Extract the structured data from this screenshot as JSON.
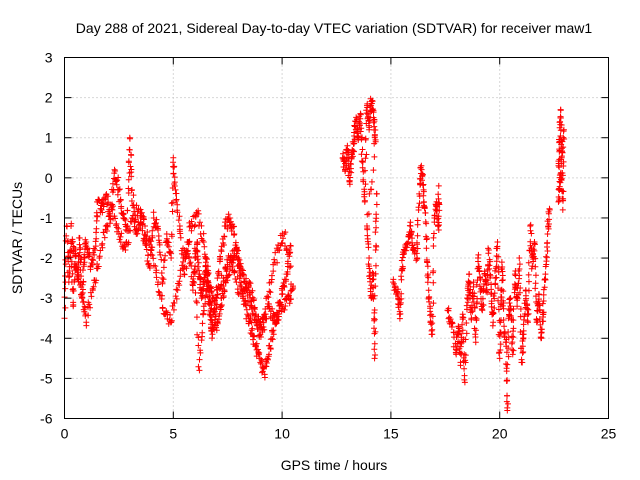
{
  "chart_data": {
    "type": "scatter",
    "title": "Day 288 of 2021, Sidereal Day-to-day VTEC variation (SDTVAR) for receiver maw1",
    "xlabel": "GPS time / hours",
    "ylabel": "SDTVAR / TECUs",
    "xlim": [
      0,
      25
    ],
    "ylim": [
      -6,
      3
    ],
    "xticks": [
      0,
      5,
      10,
      15,
      20,
      25
    ],
    "yticks": [
      -6,
      -5,
      -4,
      -3,
      -2,
      -1,
      0,
      1,
      2,
      3
    ],
    "grid": true,
    "marker": "+",
    "color": "#ff0000",
    "series": [
      {
        "name": "SDTVAR",
        "trace_segments": [
          [
            [
              0.0,
              -3.5
            ],
            [
              0.1,
              -1.2
            ],
            [
              0.2,
              -2.6
            ],
            [
              0.3,
              -1.6
            ],
            [
              0.4,
              -3.2
            ],
            [
              0.5,
              -1.8
            ],
            [
              0.6,
              -2.5
            ],
            [
              0.7,
              -1.5
            ],
            [
              0.8,
              -2.9
            ],
            [
              0.9,
              -2.0
            ],
            [
              1.0,
              -1.6
            ],
            [
              1.2,
              -2.2
            ],
            [
              1.4,
              -1.8
            ],
            [
              1.5,
              -0.6
            ],
            [
              1.7,
              -0.8
            ],
            [
              1.9,
              -0.5
            ],
            [
              2.1,
              -0.9
            ],
            [
              2.3,
              0.2
            ],
            [
              2.5,
              -0.3
            ],
            [
              2.7,
              -1.0
            ],
            [
              2.9,
              -1.2
            ],
            [
              3.0,
              1.0
            ],
            [
              3.1,
              -0.3
            ],
            [
              3.3,
              -1.4
            ],
            [
              3.5,
              -1.0
            ],
            [
              3.7,
              -1.6
            ],
            [
              3.9,
              -2.2
            ],
            [
              4.1,
              -1.0
            ],
            [
              4.3,
              -1.3
            ],
            [
              4.5,
              -2.6
            ],
            [
              4.7,
              -1.4
            ],
            [
              4.9,
              -2.0
            ],
            [
              5.0,
              0.5
            ],
            [
              5.1,
              -0.3
            ],
            [
              5.3,
              -1.2
            ],
            [
              5.5,
              -2.4
            ],
            [
              5.7,
              -1.6
            ],
            [
              5.9,
              -2.8
            ],
            [
              6.0,
              -2.2
            ],
            [
              6.2,
              -4.8
            ],
            [
              6.4,
              -3.2
            ],
            [
              6.6,
              -2.6
            ],
            [
              6.8,
              -3.6
            ],
            [
              7.0,
              -2.8
            ],
            [
              7.2,
              -1.8
            ],
            [
              7.4,
              -1.2
            ],
            [
              7.6,
              -1.0
            ],
            [
              7.8,
              -1.4
            ],
            [
              8.0,
              -2.2
            ],
            [
              8.2,
              -2.8
            ],
            [
              8.4,
              -3.4
            ],
            [
              8.6,
              -3.8
            ],
            [
              8.8,
              -4.2
            ],
            [
              9.0,
              -4.6
            ],
            [
              9.2,
              -4.9
            ],
            [
              9.4,
              -4.4
            ],
            [
              9.6,
              -3.8
            ],
            [
              9.8,
              -3.4
            ],
            [
              10.0,
              -2.8
            ],
            [
              10.2,
              -2.4
            ],
            [
              10.4,
              -1.7
            ]
          ],
          [
            [
              0.3,
              -1.2
            ],
            [
              0.5,
              -2.2
            ],
            [
              0.8,
              -3.0
            ],
            [
              1.0,
              -3.6
            ],
            [
              1.3,
              -2.8
            ],
            [
              1.6,
              -2.0
            ],
            [
              1.9,
              -1.2
            ],
            [
              2.2,
              -0.8
            ],
            [
              2.5,
              -1.4
            ],
            [
              2.8,
              -1.8
            ],
            [
              3.1,
              -1.0
            ],
            [
              3.4,
              -0.8
            ],
            [
              3.7,
              -1.2
            ],
            [
              4.0,
              -1.8
            ],
            [
              4.3,
              -2.6
            ],
            [
              4.6,
              -3.4
            ],
            [
              4.9,
              -3.6
            ],
            [
              5.2,
              -2.8
            ],
            [
              5.5,
              -2.0
            ],
            [
              5.8,
              -1.2
            ],
            [
              6.1,
              -0.9
            ],
            [
              6.4,
              -1.6
            ],
            [
              6.6,
              -2.4
            ],
            [
              6.8,
              -3.0
            ],
            [
              7.0,
              -3.8
            ],
            [
              7.2,
              -3.2
            ],
            [
              7.4,
              -2.6
            ],
            [
              7.6,
              -2.2
            ],
            [
              7.8,
              -1.8
            ],
            [
              8.0,
              -2.0
            ],
            [
              8.2,
              -2.4
            ],
            [
              8.4,
              -2.8
            ],
            [
              8.6,
              -3.2
            ],
            [
              8.8,
              -3.6
            ],
            [
              9.0,
              -3.9
            ],
            [
              9.2,
              -3.4
            ],
            [
              9.5,
              -2.6
            ],
            [
              9.8,
              -1.8
            ],
            [
              10.1,
              -1.4
            ],
            [
              10.4,
              -2.2
            ]
          ],
          [
            [
              6.0,
              -2.0
            ],
            [
              6.1,
              -1.6
            ],
            [
              6.2,
              -2.4
            ],
            [
              6.3,
              -3.0
            ],
            [
              6.4,
              -2.6
            ],
            [
              6.5,
              -2.2
            ],
            [
              6.6,
              -2.8
            ],
            [
              6.7,
              -3.4
            ],
            [
              6.8,
              -3.9
            ],
            [
              7.0,
              -3.0
            ],
            [
              7.3,
              -2.5
            ],
            [
              7.6,
              -2.0
            ],
            [
              7.9,
              -2.6
            ],
            [
              8.2,
              -3.0
            ],
            [
              8.5,
              -2.6
            ],
            [
              8.8,
              -3.4
            ],
            [
              9.1,
              -3.8
            ],
            [
              9.4,
              -3.2
            ],
            [
              9.7,
              -3.6
            ],
            [
              10.0,
              -3.2
            ],
            [
              10.3,
              -3.0
            ],
            [
              10.5,
              -2.7
            ]
          ],
          [
            [
              12.8,
              0.6
            ],
            [
              12.9,
              0.2
            ],
            [
              13.0,
              0.8
            ],
            [
              13.1,
              -0.1
            ],
            [
              13.2,
              0.5
            ],
            [
              13.3,
              0.9
            ],
            [
              13.4,
              1.4
            ],
            [
              13.5,
              1.0
            ],
            [
              13.6,
              1.6
            ],
            [
              13.7,
              0.4
            ],
            [
              13.8,
              -0.6
            ],
            [
              13.9,
              1.8
            ],
            [
              14.0,
              1.2
            ],
            [
              14.1,
              1.9
            ],
            [
              14.2,
              1.5
            ],
            [
              14.3,
              0.9
            ],
            [
              13.9,
              -1.2
            ],
            [
              14.0,
              -2.2
            ],
            [
              14.1,
              -3.0
            ],
            [
              14.2,
              -2.4
            ],
            [
              14.25,
              -4.5
            ],
            [
              14.3,
              -1.8
            ],
            [
              14.35,
              -0.4
            ]
          ],
          [
            [
              15.1,
              -2.6
            ],
            [
              15.3,
              -2.9
            ],
            [
              15.4,
              -3.4
            ],
            [
              15.5,
              -2.3
            ],
            [
              15.6,
              -1.9
            ],
            [
              15.8,
              -1.6
            ],
            [
              15.9,
              -1.2
            ],
            [
              16.0,
              -1.8
            ],
            [
              16.2,
              -2.0
            ],
            [
              16.3,
              -0.4
            ],
            [
              16.4,
              0.3
            ],
            [
              16.5,
              -0.3
            ],
            [
              16.6,
              -1.1
            ],
            [
              16.7,
              -2.4
            ],
            [
              16.8,
              -3.2
            ],
            [
              16.9,
              -3.9
            ],
            [
              17.0,
              -1.0
            ],
            [
              17.1,
              -0.6
            ],
            [
              17.2,
              -1.3
            ],
            [
              17.2,
              -0.2
            ]
          ],
          [
            [
              17.6,
              -3.3
            ],
            [
              17.8,
              -3.6
            ],
            [
              18.0,
              -4.4
            ],
            [
              18.1,
              -3.7
            ],
            [
              18.2,
              -4.6
            ],
            [
              18.3,
              -3.4
            ],
            [
              18.4,
              -5.1
            ],
            [
              18.5,
              -3.0
            ],
            [
              18.6,
              -2.4
            ],
            [
              18.7,
              -3.5
            ],
            [
              18.8,
              -2.6
            ],
            [
              18.9,
              -4.1
            ],
            [
              19.0,
              -2.0
            ],
            [
              19.1,
              -2.5
            ],
            [
              19.2,
              -3.3
            ],
            [
              19.3,
              -2.4
            ],
            [
              19.4,
              -2.8
            ],
            [
              19.5,
              -1.8
            ],
            [
              19.6,
              -2.9
            ],
            [
              19.7,
              -3.6
            ],
            [
              19.8,
              -2.5
            ],
            [
              19.9,
              -1.6
            ],
            [
              20.0,
              -4.5
            ],
            [
              20.05,
              -3.2
            ],
            [
              20.1,
              -2.1
            ],
            [
              20.2,
              -3.7
            ],
            [
              20.3,
              -4.2
            ],
            [
              20.35,
              -5.8
            ],
            [
              20.4,
              -3.5
            ],
            [
              20.5,
              -3.0
            ],
            [
              20.6,
              -4.4
            ],
            [
              20.7,
              -2.4
            ],
            [
              20.8,
              -3.2
            ],
            [
              20.9,
              -2.0
            ],
            [
              21.0,
              -4.6
            ],
            [
              21.1,
              -3.9
            ],
            [
              21.2,
              -2.8
            ],
            [
              21.3,
              -3.6
            ],
            [
              21.4,
              -1.2
            ],
            [
              21.5,
              -2.2
            ],
            [
              21.6,
              -1.6
            ],
            [
              21.7,
              -3.6
            ],
            [
              21.8,
              -2.9
            ],
            [
              21.9,
              -4.0
            ],
            [
              22.0,
              -3.4
            ],
            [
              22.1,
              -2.4
            ],
            [
              22.2,
              -1.4
            ],
            [
              22.3,
              -0.8
            ]
          ],
          [
            [
              22.7,
              0.3
            ],
            [
              22.75,
              0.9
            ],
            [
              22.8,
              1.7
            ],
            [
              22.85,
              0.5
            ],
            [
              22.9,
              -0.8
            ],
            [
              22.95,
              1.2
            ],
            [
              22.7,
              -0.6
            ],
            [
              22.8,
              0.1
            ]
          ]
        ]
      }
    ]
  }
}
